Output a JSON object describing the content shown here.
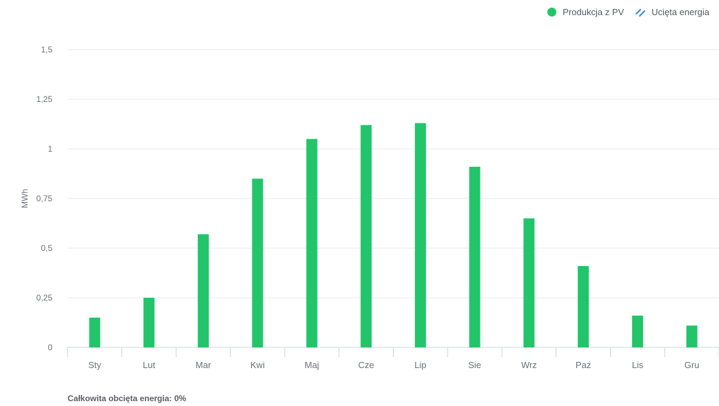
{
  "legend": {
    "pv_label": "Produkcja z PV",
    "curtailed_label": "Ucięta energia",
    "pv_color": "#22c56a",
    "curtailed_color": "#3a8fd6"
  },
  "footer": {
    "total_curtailed": "Całkowita obcięta energia: 0%"
  },
  "chart_data": {
    "type": "bar",
    "title": "",
    "xlabel": "",
    "ylabel": "MWh",
    "ylim": [
      0,
      1.5
    ],
    "yticks": [
      0,
      0.25,
      0.5,
      0.75,
      1,
      1.25,
      1.5
    ],
    "ytick_labels": [
      "0",
      "0,25",
      "0,5",
      "0,75",
      "1",
      "1,25",
      "1,5"
    ],
    "categories": [
      "Sty",
      "Lut",
      "Mar",
      "Kwi",
      "Maj",
      "Cze",
      "Lip",
      "Sie",
      "Wrz",
      "Paź",
      "Lis",
      "Gru"
    ],
    "series": [
      {
        "name": "Produkcja z PV",
        "color": "#22c56a",
        "values": [
          0.15,
          0.25,
          0.57,
          0.85,
          1.05,
          1.12,
          1.13,
          0.91,
          0.65,
          0.41,
          0.16,
          0.11
        ]
      }
    ],
    "grid": true,
    "legend_position": "top-right"
  }
}
